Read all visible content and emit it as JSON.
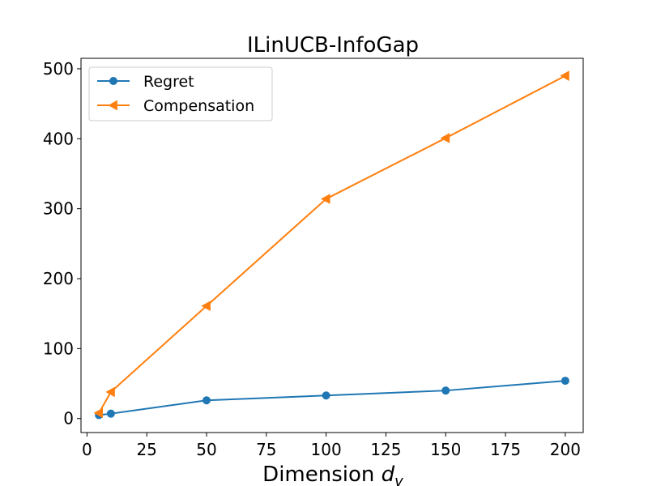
{
  "chart_data": {
    "type": "line",
    "title": "ILinUCB-InfoGap",
    "xlabel_prefix": "Dimension ",
    "xlabel_var": "d",
    "xlabel_sub": "v",
    "ylabel": "",
    "xlim": [
      -2.5,
      207.5
    ],
    "ylim": [
      -20,
      515
    ],
    "xticks": [
      0,
      25,
      50,
      75,
      100,
      125,
      150,
      175,
      200
    ],
    "yticks": [
      0,
      100,
      200,
      300,
      400,
      500
    ],
    "grid": false,
    "legend_position": "upper-left",
    "series": [
      {
        "name": "Regret",
        "color": "#1f77b4",
        "marker": "circle",
        "x": [
          5,
          10,
          50,
          100,
          150,
          200
        ],
        "y": [
          5,
          7,
          26,
          33,
          40,
          54
        ]
      },
      {
        "name": "Compensation",
        "color": "#ff7f0e",
        "marker": "triangle-left",
        "x": [
          5,
          10,
          50,
          100,
          150,
          200
        ],
        "y": [
          8,
          38,
          161,
          314,
          401,
          490
        ]
      }
    ]
  }
}
